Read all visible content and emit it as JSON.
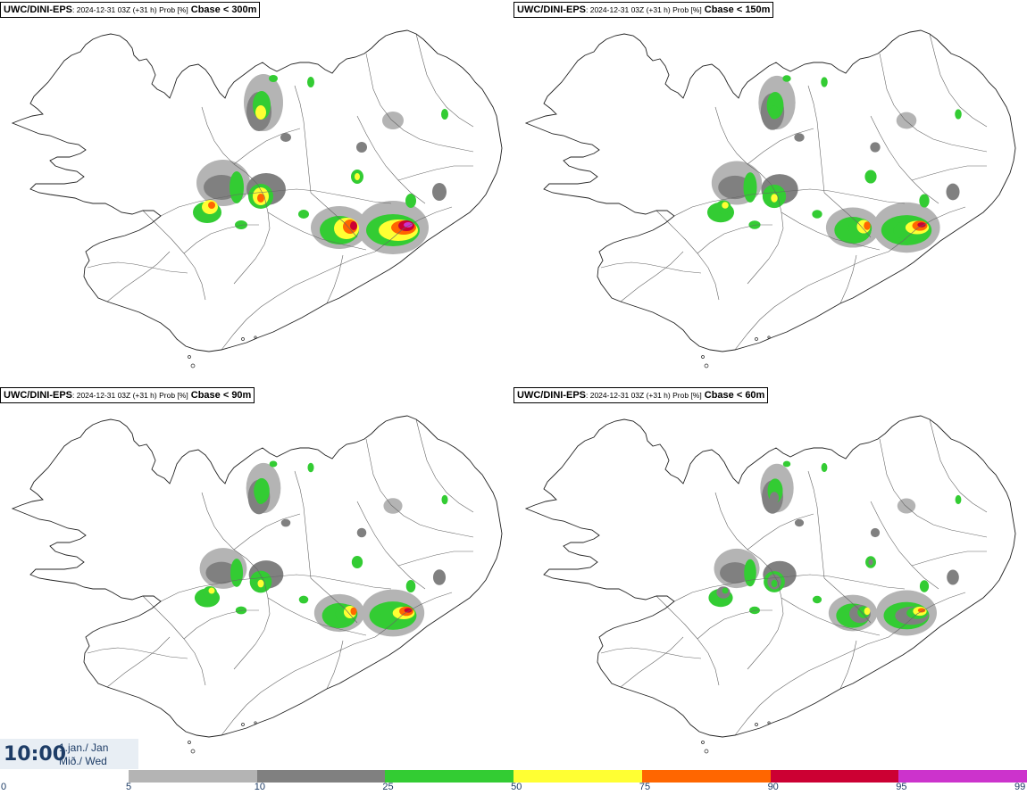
{
  "panels": [
    {
      "model": "UWC/DINI-EPS",
      "info": ": 2024-12-31 03Z (+31 h) Prob [%]",
      "param": "Cbase < 300m",
      "intensity": 1.0
    },
    {
      "model": "UWC/DINI-EPS",
      "info": ": 2024-12-31 03Z (+31 h) Prob [%]",
      "param": "Cbase < 150m",
      "intensity": 0.8
    },
    {
      "model": "UWC/DINI-EPS",
      "info": ": 2024-12-31 03Z (+31 h) Prob [%]",
      "param": "Cbase < 90m",
      "intensity": 0.6
    },
    {
      "model": "UWC/DINI-EPS",
      "info": ": 2024-12-31 03Z (+31 h) Prob [%]",
      "param": "Cbase < 60m",
      "intensity": 0.5
    }
  ],
  "time": {
    "clock": "10:00",
    "date_line1": "1.jan./ Jan",
    "date_line2": "Mið./ Wed"
  },
  "scale": {
    "ticks": [
      "0",
      "5",
      "10",
      "25",
      "50",
      "75",
      "90",
      "95",
      "99"
    ],
    "colors": [
      "#ffffff",
      "#b4b4b4",
      "#808080",
      "#33cc33",
      "#ffff33",
      "#ff6600",
      "#cc0033",
      "#cc33cc"
    ]
  }
}
